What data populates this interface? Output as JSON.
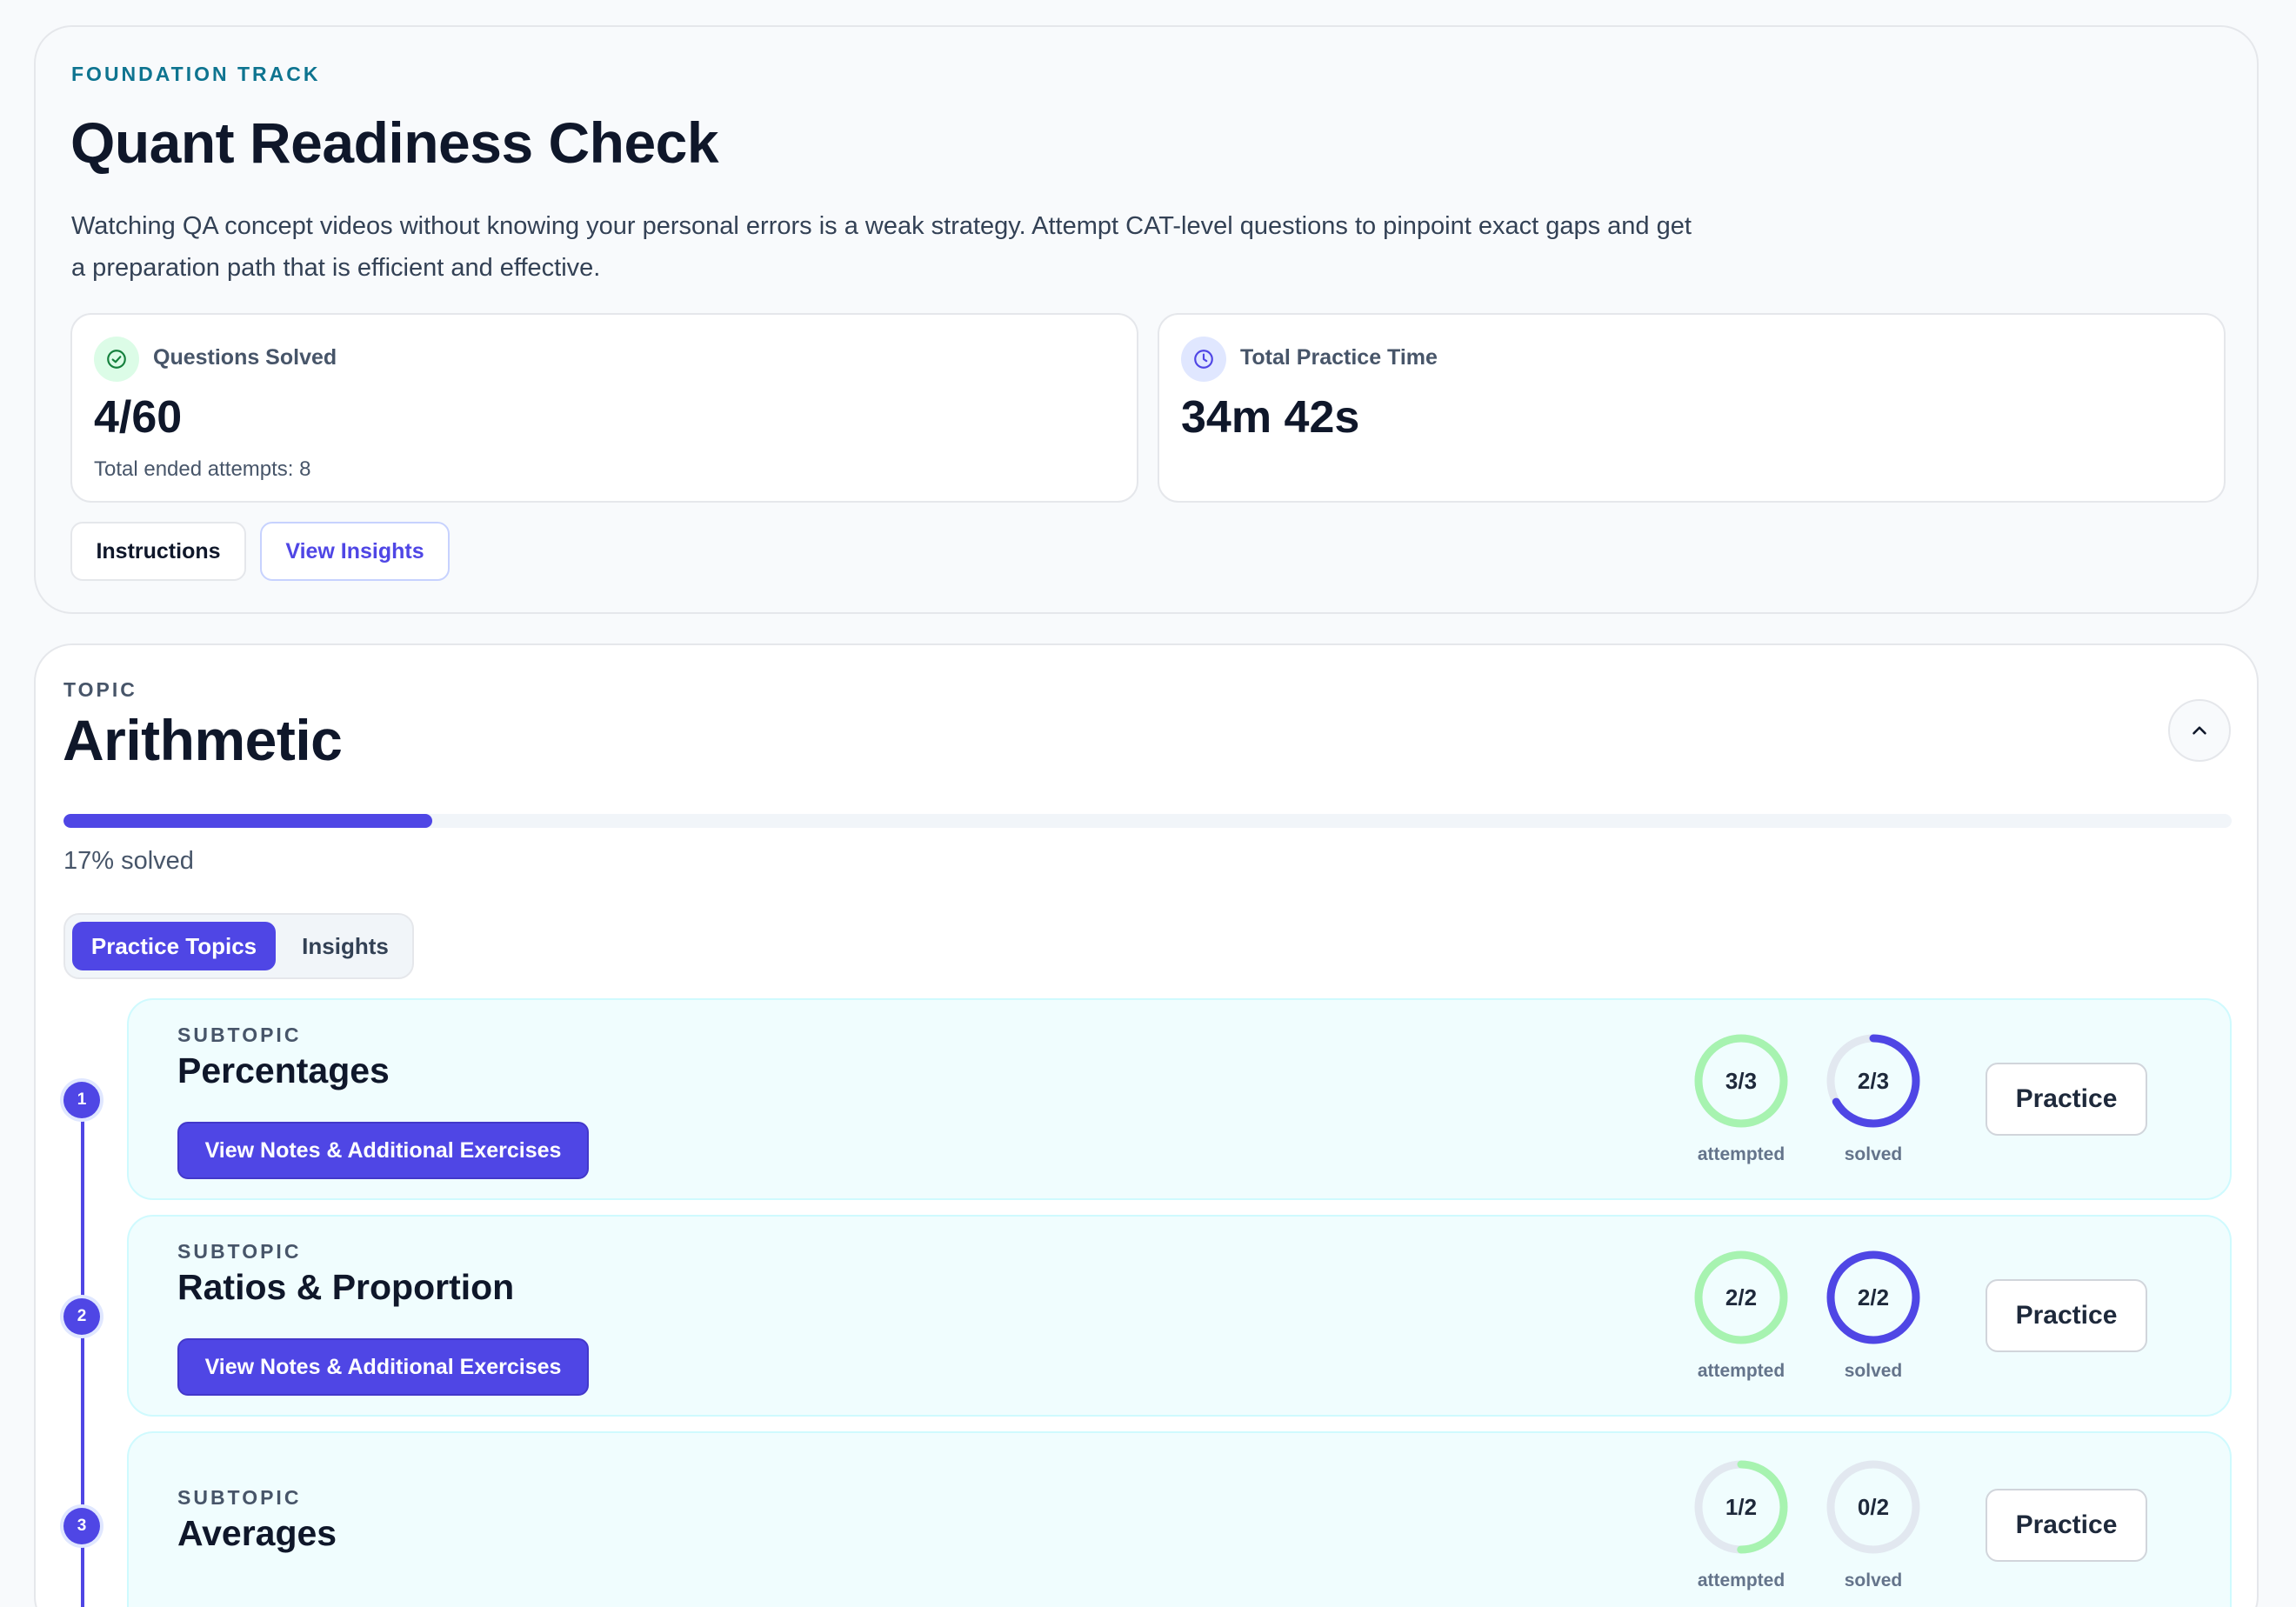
{
  "header": {
    "eyebrow": "FOUNDATION TRACK",
    "title": "Quant Readiness Check",
    "description": "Watching QA concept videos without knowing your personal errors is a weak strategy. Attempt CAT-level questions to pinpoint exact gaps and get a preparation path that is efficient and effective.",
    "stats": {
      "solved": {
        "label": "Questions Solved",
        "value": "4/60",
        "sub": "Total ended attempts: 8",
        "icon": "check-circle-icon"
      },
      "time": {
        "label": "Total Practice Time",
        "value": "34m 42s",
        "icon": "clock-icon"
      }
    },
    "buttons": {
      "instructions": "Instructions",
      "view_insights": "View Insights"
    }
  },
  "topic": {
    "eyebrow": "TOPIC",
    "title": "Arithmetic",
    "progress_percent": 17,
    "progress_text": "17% solved",
    "tabs": {
      "practice": "Practice Topics",
      "insights": "Insights"
    },
    "subtopics": [
      {
        "step": "1",
        "eyebrow": "SUBTOPIC",
        "title": "Percentages",
        "notes_button": "View Notes & Additional Exercises",
        "attempted": {
          "text": "3/3",
          "fraction": 1.0,
          "label": "attempted"
        },
        "solved": {
          "text": "2/3",
          "fraction": 0.667,
          "label": "solved"
        },
        "practice": "Practice"
      },
      {
        "step": "2",
        "eyebrow": "SUBTOPIC",
        "title": "Ratios & Proportion",
        "notes_button": "View Notes & Additional Exercises",
        "attempted": {
          "text": "2/2",
          "fraction": 1.0,
          "label": "attempted"
        },
        "solved": {
          "text": "2/2",
          "fraction": 1.0,
          "label": "solved"
        },
        "practice": "Practice"
      },
      {
        "step": "3",
        "eyebrow": "SUBTOPIC",
        "title": "Averages",
        "attempted": {
          "text": "1/2",
          "fraction": 0.5,
          "label": "attempted"
        },
        "solved": {
          "text": "0/2",
          "fraction": 0.0,
          "label": "solved"
        },
        "practice": "Practice"
      }
    ]
  },
  "colors": {
    "accent": "#4f46e5",
    "attempted_ring": "#a7f3b0",
    "ring_track": "#e2e8f0",
    "eyebrow_teal": "#0e7490"
  }
}
